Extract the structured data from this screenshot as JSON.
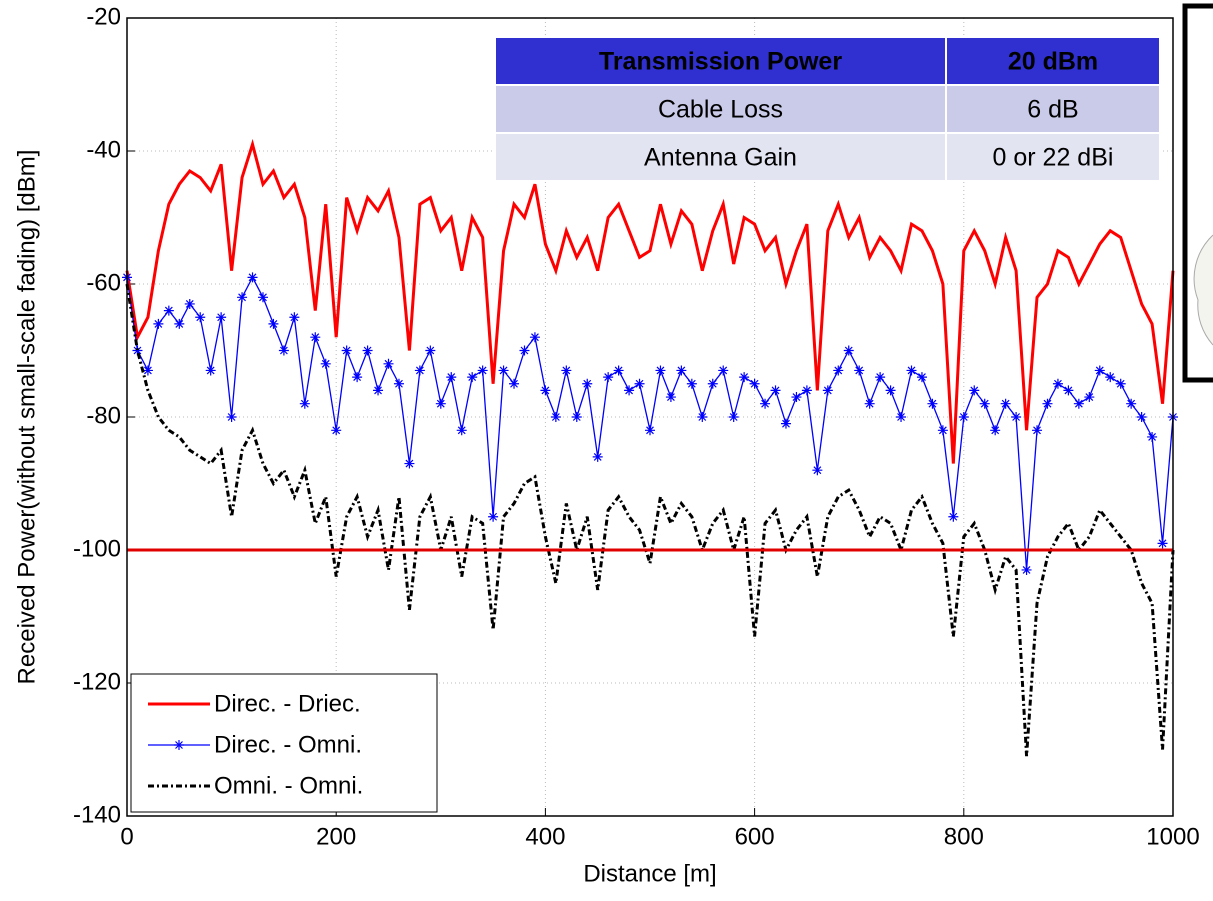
{
  "chart_data": {
    "type": "line",
    "xlabel": "Distance [m]",
    "ylabel": "Received Power(without small-scale fading) [dBm]",
    "xlim": [
      0,
      1000
    ],
    "xticks": [
      0,
      200,
      400,
      600,
      800,
      1000
    ],
    "ylim": [
      -140,
      -20
    ],
    "yticks": [
      -140,
      -120,
      -100,
      -80,
      -60,
      -40,
      -20
    ],
    "grid": true,
    "legend": "lower left",
    "x": [
      0,
      10,
      20,
      30,
      40,
      50,
      60,
      70,
      80,
      90,
      100,
      110,
      120,
      130,
      140,
      150,
      160,
      170,
      180,
      190,
      200,
      210,
      220,
      230,
      240,
      250,
      260,
      270,
      280,
      290,
      300,
      310,
      320,
      330,
      340,
      350,
      360,
      370,
      380,
      390,
      400,
      410,
      420,
      430,
      440,
      450,
      460,
      470,
      480,
      490,
      500,
      510,
      520,
      530,
      540,
      550,
      560,
      570,
      580,
      590,
      600,
      610,
      620,
      630,
      640,
      650,
      660,
      670,
      680,
      690,
      700,
      710,
      720,
      730,
      740,
      750,
      760,
      770,
      780,
      790,
      800,
      810,
      820,
      830,
      840,
      850,
      860,
      870,
      880,
      890,
      900,
      910,
      920,
      930,
      940,
      950,
      960,
      970,
      980,
      990,
      1000
    ],
    "series": [
      {
        "name": "Direc. - Driec.",
        "color": "#ff0000",
        "style": "solid",
        "values": [
          -58,
          -68,
          -65,
          -55,
          -48,
          -45,
          -43,
          -44,
          -46,
          -42,
          -58,
          -44,
          -39,
          -45,
          -43,
          -47,
          -45,
          -50,
          -64,
          -48,
          -68,
          -47,
          -52,
          -47,
          -49,
          -46,
          -53,
          -70,
          -48,
          -47,
          -52,
          -50,
          -58,
          -50,
          -53,
          -75,
          -55,
          -48,
          -50,
          -45,
          -54,
          -58,
          -52,
          -56,
          -53,
          -58,
          -50,
          -48,
          -52,
          -56,
          -55,
          -48,
          -54,
          -49,
          -51,
          -58,
          -52,
          -48,
          -57,
          -50,
          -51,
          -55,
          -53,
          -60,
          -55,
          -51,
          -76,
          -52,
          -48,
          -53,
          -50,
          -56,
          -53,
          -55,
          -58,
          -51,
          -52,
          -55,
          -60,
          -87,
          -55,
          -52,
          -55,
          -60,
          -53,
          -58,
          -82,
          -62,
          -60,
          -55,
          -56,
          -60,
          -57,
          -54,
          -52,
          -53,
          -58,
          -63,
          -66,
          -78,
          -58
        ]
      },
      {
        "name": "Direc. - Omni.",
        "color": "#0000ff",
        "style": "star",
        "values": [
          -59,
          -70,
          -73,
          -66,
          -64,
          -66,
          -63,
          -65,
          -73,
          -65,
          -80,
          -62,
          -59,
          -62,
          -66,
          -70,
          -65,
          -78,
          -68,
          -72,
          -82,
          -70,
          -74,
          -70,
          -76,
          -72,
          -75,
          -87,
          -73,
          -70,
          -78,
          -74,
          -82,
          -74,
          -73,
          -95,
          -73,
          -75,
          -70,
          -68,
          -76,
          -80,
          -73,
          -80,
          -75,
          -86,
          -74,
          -73,
          -76,
          -75,
          -82,
          -73,
          -77,
          -73,
          -75,
          -80,
          -75,
          -73,
          -80,
          -74,
          -75,
          -78,
          -76,
          -81,
          -77,
          -76,
          -88,
          -76,
          -73,
          -70,
          -73,
          -78,
          -74,
          -76,
          -80,
          -73,
          -74,
          -78,
          -82,
          -95,
          -80,
          -76,
          -78,
          -82,
          -78,
          -80,
          -103,
          -82,
          -78,
          -75,
          -76,
          -78,
          -77,
          -73,
          -74,
          -75,
          -78,
          -80,
          -83,
          -99,
          -80
        ]
      },
      {
        "name": "Omni. - Omni.",
        "color": "#000000",
        "style": "dashdot",
        "values": [
          -60,
          -70,
          -76,
          -80,
          -82,
          -83,
          -85,
          -86,
          -87,
          -85,
          -95,
          -85,
          -82,
          -87,
          -90,
          -88,
          -92,
          -88,
          -96,
          -92,
          -104,
          -95,
          -92,
          -98,
          -94,
          -103,
          -92,
          -109,
          -95,
          -92,
          -100,
          -95,
          -104,
          -95,
          -96,
          -112,
          -95,
          -93,
          -90,
          -89,
          -98,
          -105,
          -93,
          -100,
          -95,
          -106,
          -94,
          -92,
          -95,
          -97,
          -102,
          -92,
          -96,
          -93,
          -95,
          -100,
          -96,
          -94,
          -100,
          -95,
          -113,
          -96,
          -94,
          -100,
          -97,
          -95,
          -104,
          -95,
          -92,
          -91,
          -94,
          -98,
          -95,
          -96,
          -100,
          -94,
          -92,
          -96,
          -99,
          -113,
          -98,
          -96,
          -100,
          -106,
          -101,
          -103,
          -131,
          -108,
          -101,
          -98,
          -96,
          -100,
          -98,
          -94,
          -96,
          -98,
          -100,
          -105,
          -108,
          -130,
          -100
        ]
      }
    ],
    "hline": {
      "value": -100,
      "color": "#e00000"
    },
    "table": {
      "header": [
        "Transmission Power",
        "20 dBm"
      ],
      "rows": [
        [
          "Cable Loss",
          "6 dB"
        ],
        [
          "Antenna Gain",
          "0 or 22 dBi"
        ]
      ]
    }
  }
}
